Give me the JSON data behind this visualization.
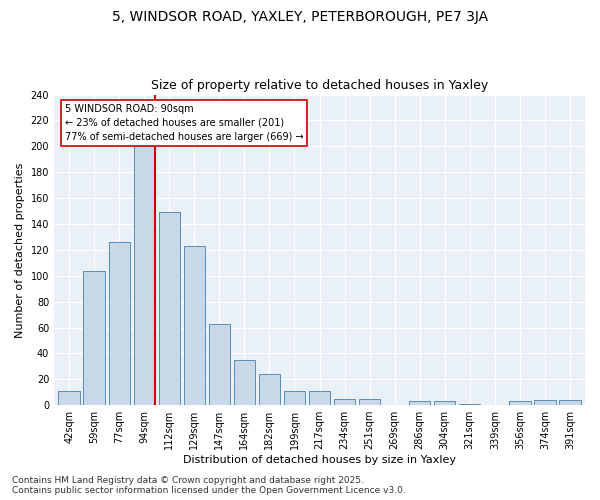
{
  "title_line1": "5, WINDSOR ROAD, YAXLEY, PETERBOROUGH, PE7 3JA",
  "title_line2": "Size of property relative to detached houses in Yaxley",
  "xlabel": "Distribution of detached houses by size in Yaxley",
  "ylabel": "Number of detached properties",
  "bar_color": "#c8d8e8",
  "bar_edge_color": "#5b8db8",
  "background_color": "#eaf0f8",
  "categories": [
    "42sqm",
    "59sqm",
    "77sqm",
    "94sqm",
    "112sqm",
    "129sqm",
    "147sqm",
    "164sqm",
    "182sqm",
    "199sqm",
    "217sqm",
    "234sqm",
    "251sqm",
    "269sqm",
    "286sqm",
    "304sqm",
    "321sqm",
    "339sqm",
    "356sqm",
    "374sqm",
    "391sqm"
  ],
  "values": [
    11,
    104,
    126,
    201,
    149,
    123,
    63,
    35,
    24,
    11,
    11,
    5,
    5,
    0,
    3,
    3,
    1,
    0,
    3,
    4,
    4
  ],
  "vline_index": 3,
  "vline_color": "#cc0000",
  "annotation_line1": "5 WINDSOR ROAD: 90sqm",
  "annotation_line2": "← 23% of detached houses are smaller (201)",
  "annotation_line3": "77% of semi-detached houses are larger (669) →",
  "annotation_box_color": "#ffffff",
  "annotation_box_edge": "#cc0000",
  "ylim": [
    0,
    240
  ],
  "yticks": [
    0,
    20,
    40,
    60,
    80,
    100,
    120,
    140,
    160,
    180,
    200,
    220,
    240
  ],
  "footer": "Contains HM Land Registry data © Crown copyright and database right 2025.\nContains public sector information licensed under the Open Government Licence v3.0.",
  "title_fontsize": 10,
  "subtitle_fontsize": 9,
  "axis_label_fontsize": 8,
  "tick_fontsize": 7,
  "footer_fontsize": 6.5
}
